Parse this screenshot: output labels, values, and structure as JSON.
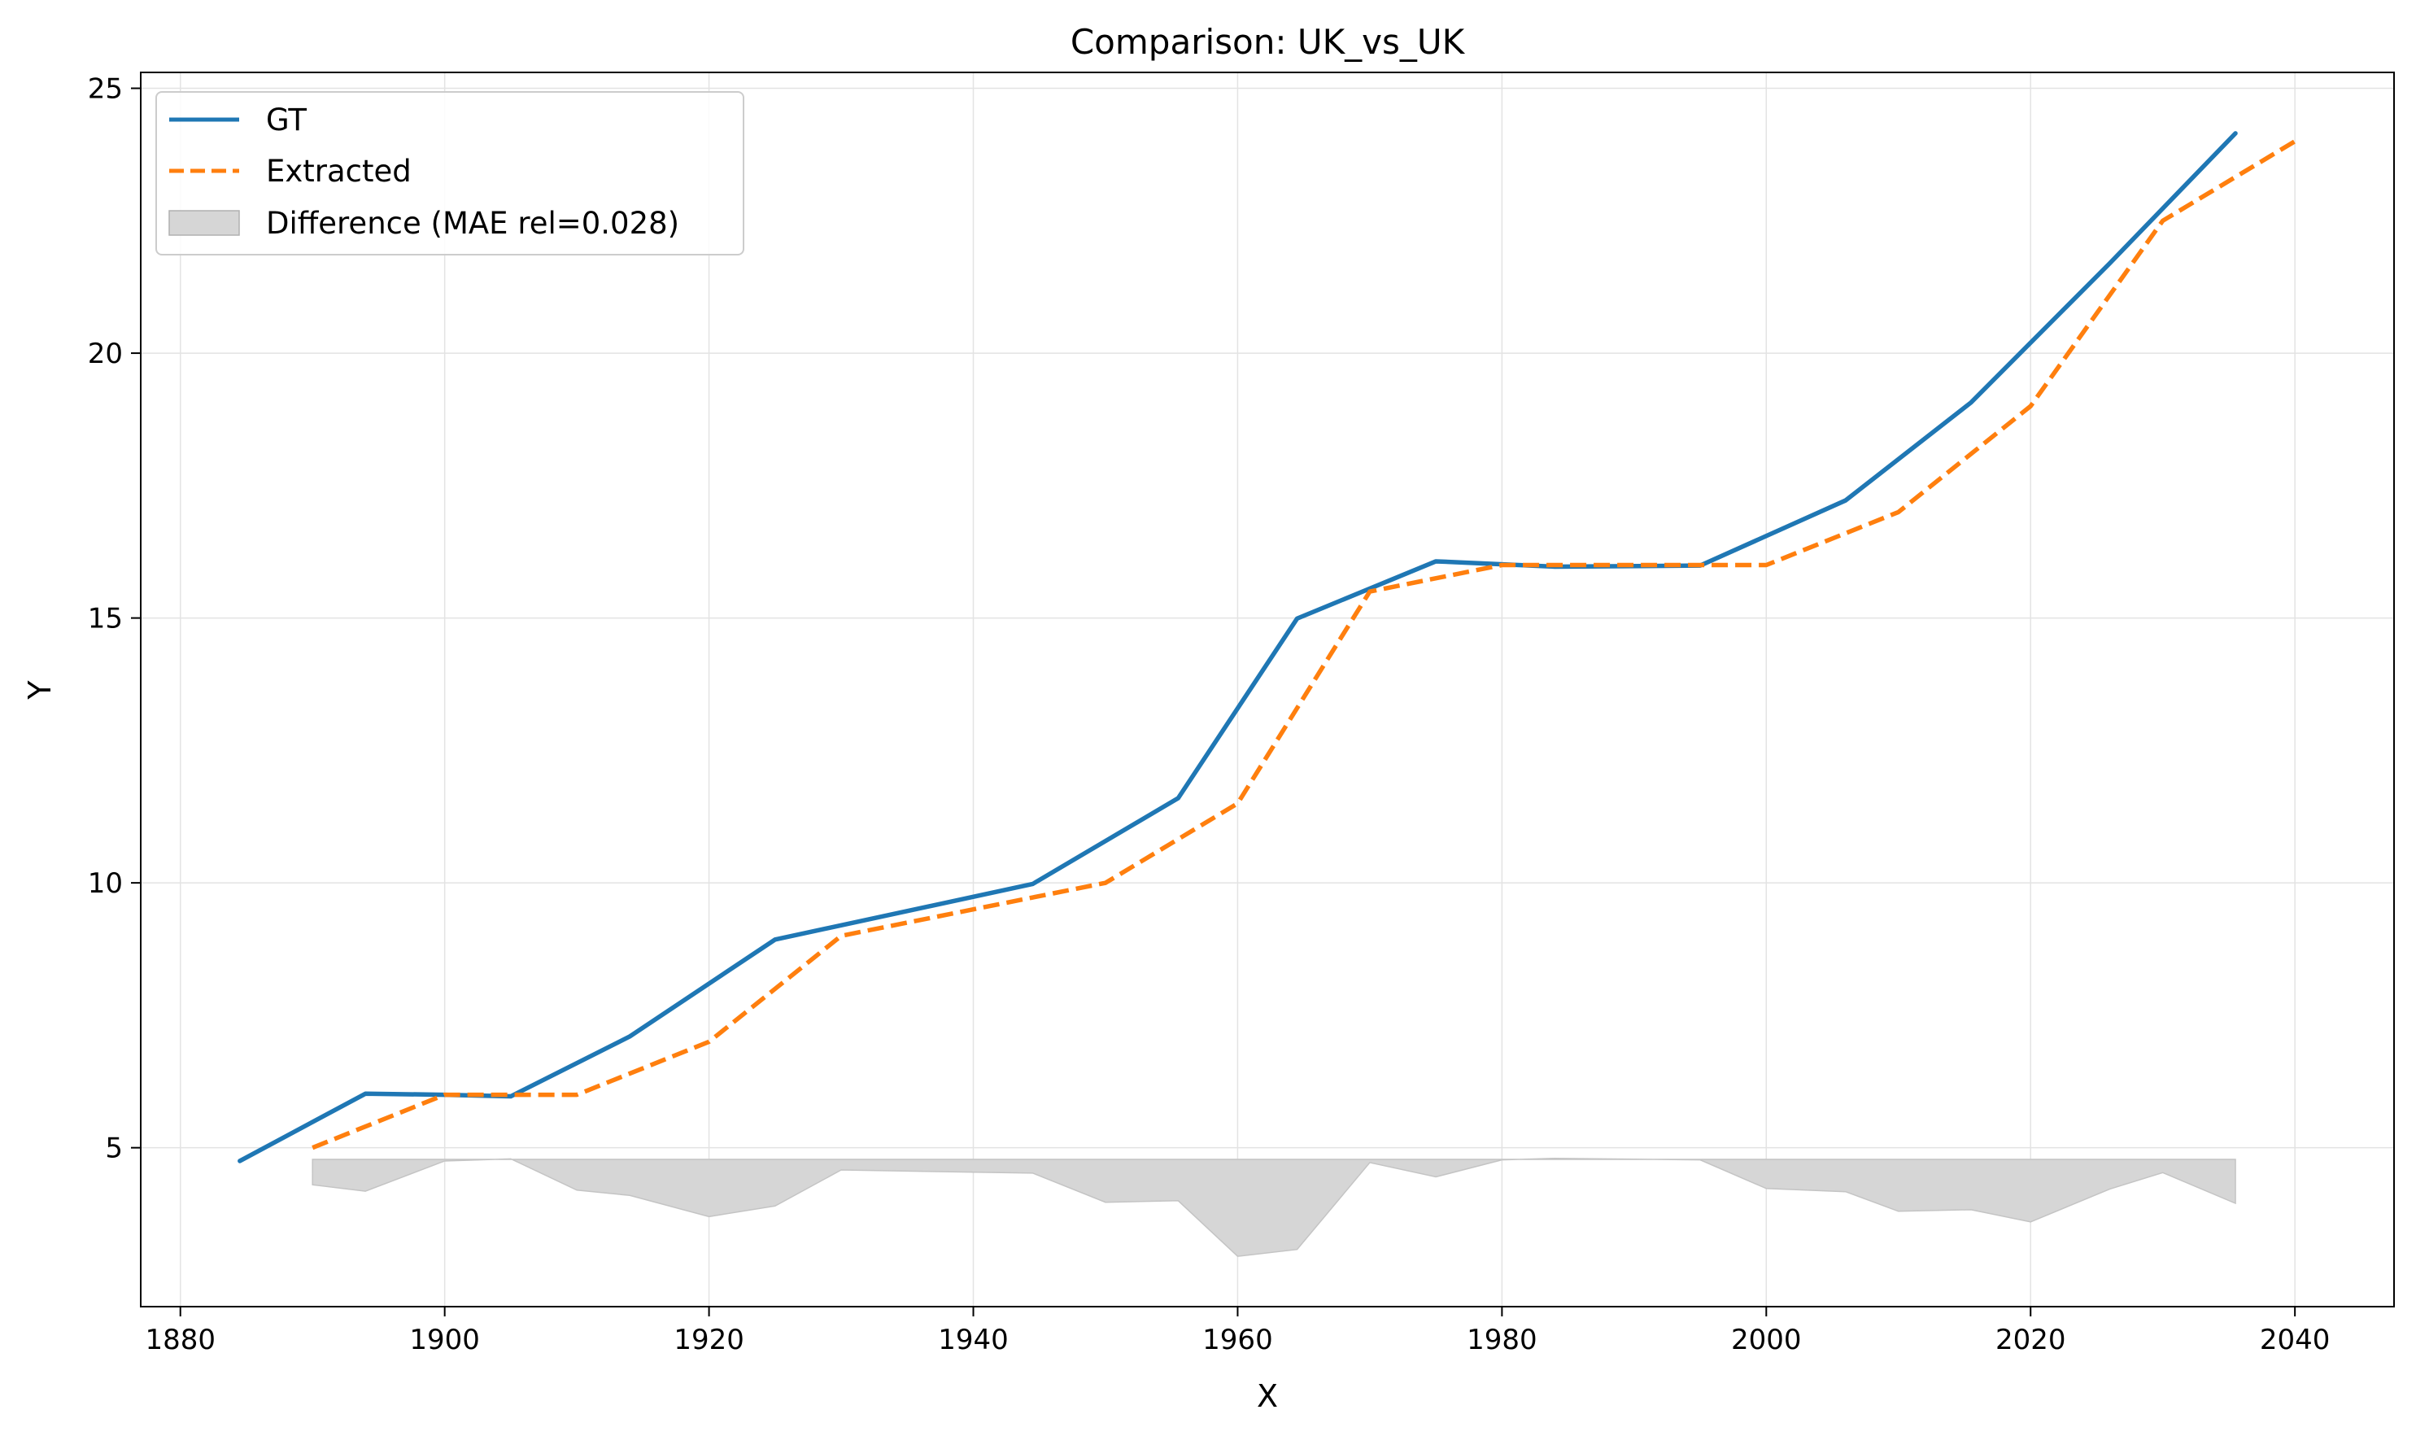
{
  "chart_data": {
    "type": "line",
    "title": "Comparison: UK_vs_UK",
    "xlabel": "X",
    "ylabel": "Y",
    "xlim": [
      1877,
      2047.5
    ],
    "ylim": [
      2.0,
      25.3
    ],
    "x_ticks": [
      1880,
      1900,
      1920,
      1940,
      1960,
      1980,
      2000,
      2020,
      2040
    ],
    "y_ticks": [
      5,
      10,
      15,
      20,
      25
    ],
    "grid": true,
    "legend_position": "top-left",
    "series": [
      {
        "name": "GT",
        "color": "#1f77b4",
        "style": "solid",
        "x": [
          1884.5,
          1894,
          1900,
          1905,
          1914,
          1925,
          1944.5,
          1955.5,
          1964.5,
          1975,
          1984,
          1995,
          2006,
          2015.5,
          2026,
          2035.5
        ],
        "y": [
          4.75,
          6.02,
          6.0,
          5.97,
          7.1,
          8.93,
          9.98,
          11.6,
          14.99,
          16.07,
          15.97,
          15.99,
          17.22,
          19.07,
          21.7,
          24.15
        ]
      },
      {
        "name": "Extracted",
        "color": "#ff7f0e",
        "style": "dashed",
        "x": [
          1890,
          1900,
          1910,
          1920,
          1930,
          1940,
          1950,
          1960,
          1970,
          1980,
          1990,
          2000,
          2010,
          2020,
          2030,
          2040
        ],
        "y": [
          5.0,
          6.0,
          6.0,
          7.0,
          9.0,
          9.5,
          10.0,
          11.5,
          15.5,
          16.0,
          16.0,
          16.0,
          17.0,
          19.0,
          22.5,
          24.0
        ]
      }
    ],
    "difference": {
      "name": "Difference (MAE rel=0.028)",
      "color": "#d6d6d6",
      "baseline": 4.78,
      "x": [
        1890,
        1894,
        1900,
        1905,
        1910,
        1914,
        1920,
        1925,
        1930,
        1944.5,
        1950,
        1955.5,
        1960,
        1964.5,
        1970,
        1975,
        1980,
        1984,
        1995,
        2000,
        2006,
        2010,
        2015.5,
        2020,
        2026,
        2030,
        2035.5
      ],
      "y": [
        4.3,
        4.18,
        4.75,
        4.79,
        4.2,
        4.1,
        3.7,
        3.9,
        4.58,
        4.52,
        3.97,
        4.0,
        2.95,
        3.08,
        4.72,
        4.45,
        4.77,
        4.8,
        4.77,
        4.23,
        4.17,
        3.8,
        3.83,
        3.6,
        4.22,
        4.53,
        3.95
      ]
    }
  }
}
